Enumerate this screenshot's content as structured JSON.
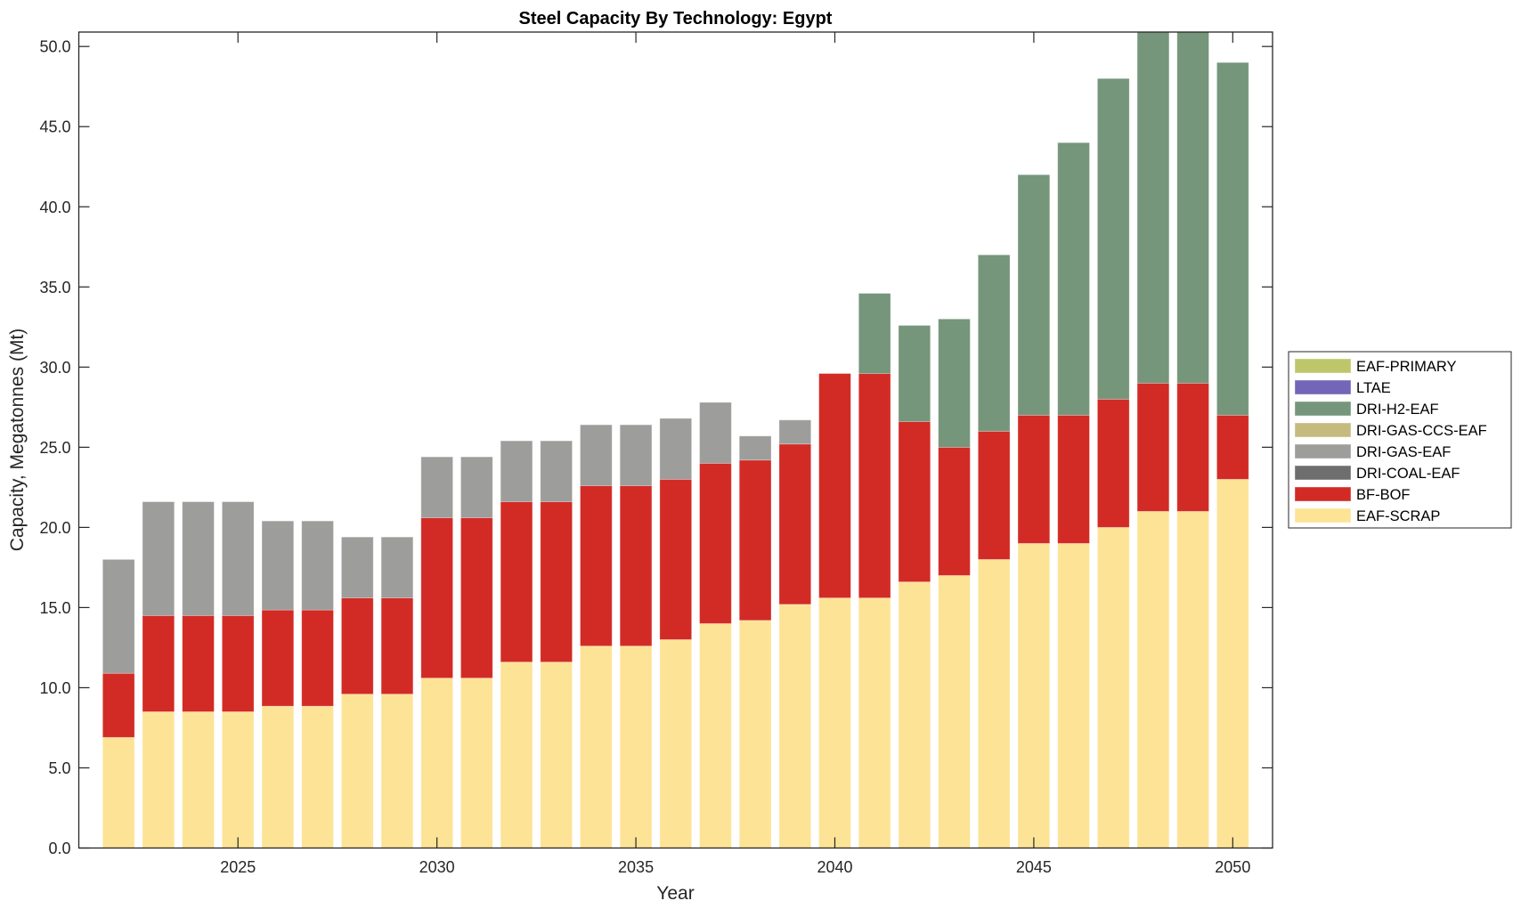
{
  "chart_data": {
    "type": "bar",
    "stacked": true,
    "title": "Steel Capacity By Technology: Egypt",
    "xlabel": "Year",
    "ylabel": "Capacity, Megatonnes (Mt)",
    "xlim": [
      2021,
      2051
    ],
    "ylim": [
      0,
      50.9
    ],
    "grid": false,
    "legend_position": "right-outside",
    "x": [
      2022,
      2023,
      2024,
      2025,
      2026,
      2027,
      2028,
      2029,
      2030,
      2031,
      2032,
      2033,
      2034,
      2035,
      2036,
      2037,
      2038,
      2039,
      2040,
      2041,
      2042,
      2043,
      2044,
      2045,
      2046,
      2047,
      2048,
      2049,
      2050
    ],
    "x_ticks": [
      2025,
      2030,
      2035,
      2040,
      2045,
      2050
    ],
    "x_tick_labels": [
      "2025",
      "2030",
      "2035",
      "2040",
      "2045",
      "2050"
    ],
    "y_ticks": [
      0,
      5,
      10,
      15,
      20,
      25,
      30,
      35,
      40,
      45,
      50
    ],
    "y_tick_labels": [
      "0.0",
      "5.0",
      "10.0",
      "15.0",
      "20.0",
      "25.0",
      "30.0",
      "35.0",
      "40.0",
      "45.0",
      "50.0"
    ],
    "series": [
      {
        "name": "EAF-SCRAP",
        "color": "#FDE396",
        "values": [
          6.9,
          8.5,
          8.5,
          8.5,
          8.85,
          8.85,
          9.6,
          9.6,
          10.6,
          10.6,
          11.6,
          11.6,
          12.6,
          12.6,
          13.0,
          14.0,
          14.2,
          15.2,
          15.6,
          15.6,
          16.6,
          17.0,
          18.0,
          19.0,
          19.0,
          20.0,
          21.0,
          21.0,
          23.0
        ]
      },
      {
        "name": "BF-BOF",
        "color": "#D22B25",
        "values": [
          4.0,
          6.0,
          6.0,
          6.0,
          6.0,
          6.0,
          6.0,
          6.0,
          10.0,
          10.0,
          10.0,
          10.0,
          10.0,
          10.0,
          10.0,
          10.0,
          10.0,
          10.0,
          14.0,
          14.0,
          10.0,
          8.0,
          8.0,
          8.0,
          8.0,
          8.0,
          8.0,
          8.0,
          4.0
        ]
      },
      {
        "name": "DRI-COAL-EAF",
        "color": "#6E6E6E",
        "values": [
          0,
          0,
          0,
          0,
          0,
          0,
          0,
          0,
          0,
          0,
          0,
          0,
          0,
          0,
          0,
          0,
          0,
          0,
          0,
          0,
          0,
          0,
          0,
          0,
          0,
          0,
          0,
          0,
          0
        ]
      },
      {
        "name": "DRI-GAS-EAF",
        "color": "#9D9D9B",
        "values": [
          7.1,
          7.1,
          7.1,
          7.1,
          5.55,
          5.55,
          3.8,
          3.8,
          3.8,
          3.8,
          3.8,
          3.8,
          3.8,
          3.8,
          3.8,
          3.8,
          1.5,
          1.5,
          0,
          0,
          0,
          0,
          0,
          0,
          0,
          0,
          0,
          0,
          0
        ]
      },
      {
        "name": "DRI-GAS-CCS-EAF",
        "color": "#C6BB7F",
        "values": [
          0,
          0,
          0,
          0,
          0,
          0,
          0,
          0,
          0,
          0,
          0,
          0,
          0,
          0,
          0,
          0,
          0,
          0,
          0,
          0,
          0,
          0,
          0,
          0,
          0,
          0,
          0,
          0,
          0
        ]
      },
      {
        "name": "DRI-H2-EAF",
        "color": "#75967B",
        "values": [
          0,
          0,
          0,
          0,
          0,
          0,
          0,
          0,
          0,
          0,
          0,
          0,
          0,
          0,
          0,
          0,
          0,
          0,
          0,
          5.0,
          6.0,
          8.0,
          11.0,
          15.0,
          17.0,
          20.0,
          22.0,
          22.0,
          22.0
        ]
      },
      {
        "name": "LTAE",
        "color": "#7366B8",
        "values": [
          0,
          0,
          0,
          0,
          0,
          0,
          0,
          0,
          0,
          0,
          0,
          0,
          0,
          0,
          0,
          0,
          0,
          0,
          0,
          0,
          0,
          0,
          0,
          0,
          0,
          0,
          0,
          0,
          0
        ]
      },
      {
        "name": "EAF-PRIMARY",
        "color": "#BEC66A",
        "values": [
          0,
          0,
          0,
          0,
          0,
          0,
          0,
          0,
          0,
          0,
          0,
          0,
          0,
          0,
          0,
          0,
          0,
          0,
          0,
          0,
          0,
          0,
          0,
          0,
          0,
          0,
          0,
          0,
          0
        ]
      }
    ],
    "annotations": [
      "2048 and 2049 bars extend beyond the top of the y-axis (clipped)"
    ],
    "legend": [
      {
        "label": "EAF-PRIMARY",
        "color": "#BEC66A"
      },
      {
        "label": "LTAE",
        "color": "#7366B8"
      },
      {
        "label": "DRI-H2-EAF",
        "color": "#75967B"
      },
      {
        "label": "DRI-GAS-CCS-EAF",
        "color": "#C6BB7F"
      },
      {
        "label": "DRI-GAS-EAF",
        "color": "#9D9D9B"
      },
      {
        "label": "DRI-COAL-EAF",
        "color": "#6E6E6E"
      },
      {
        "label": "BF-BOF",
        "color": "#D22B25"
      },
      {
        "label": "EAF-SCRAP",
        "color": "#FDE396"
      }
    ]
  }
}
